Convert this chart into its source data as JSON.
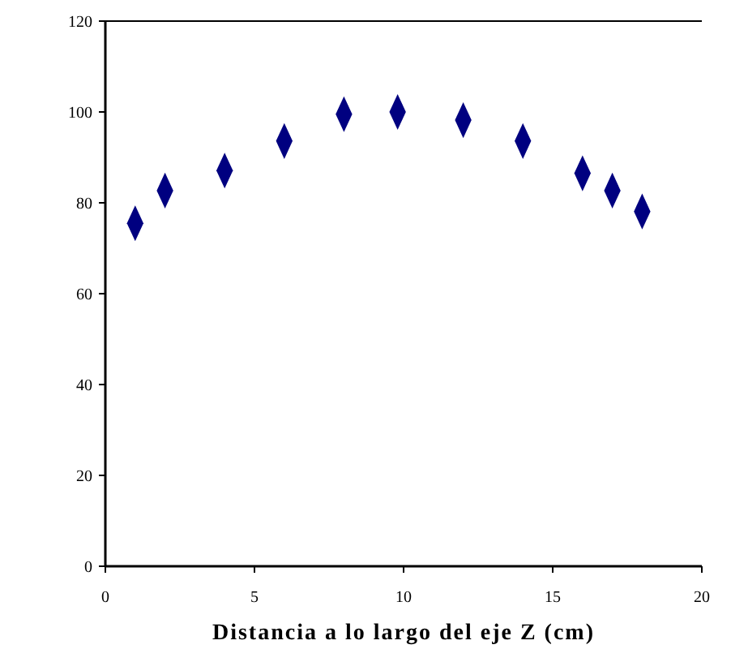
{
  "chart_data": {
    "type": "scatter",
    "xlabel": "Distancia a lo largo del eje Z (cm)",
    "x": [
      1,
      2,
      4,
      6,
      8,
      9.8,
      12,
      14,
      16,
      17,
      18
    ],
    "values": [
      75.5,
      82.7,
      87.1,
      93.6,
      99.5,
      100,
      98.2,
      93.6,
      86.5,
      82.7,
      78.1
    ],
    "color": "#000080",
    "marker": "diamond",
    "xlim": [
      0,
      20
    ],
    "xticks": [
      0,
      5,
      10,
      15,
      20
    ],
    "ylim": [
      0,
      120
    ],
    "yticks": [
      0,
      20,
      40,
      60,
      80,
      100,
      120
    ],
    "grid": false
  }
}
